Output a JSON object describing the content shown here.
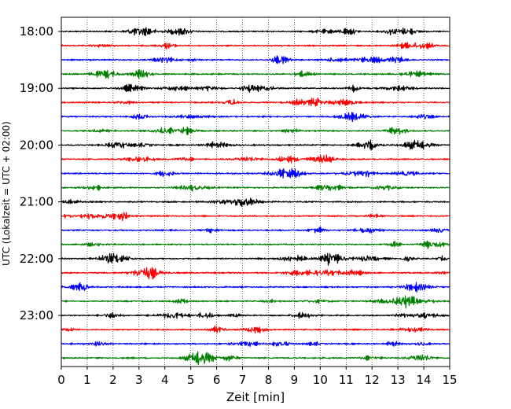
{
  "chart_data": {
    "type": "line",
    "title": "",
    "xlabel": "Zeit  [min]",
    "ylabel": "UTC (Lokalzeit = UTC + 02:00)",
    "xlim": [
      0,
      15
    ],
    "x_ticks": [
      0,
      1,
      2,
      3,
      4,
      5,
      6,
      7,
      8,
      9,
      10,
      11,
      12,
      13,
      14,
      15
    ],
    "y_tick_labels": [
      "18:00",
      "19:00",
      "20:00",
      "21:00",
      "22:00",
      "23:00"
    ],
    "start_time": "18:00",
    "trace_interval_minutes": 15,
    "trace_count": 24,
    "trace_colors": [
      "#000000",
      "#ff0000",
      "#0000ff",
      "#008000"
    ],
    "vertical_grid": "dotted",
    "series_note": "seismogram-style helicorder traces, one per 15-minute interval"
  }
}
